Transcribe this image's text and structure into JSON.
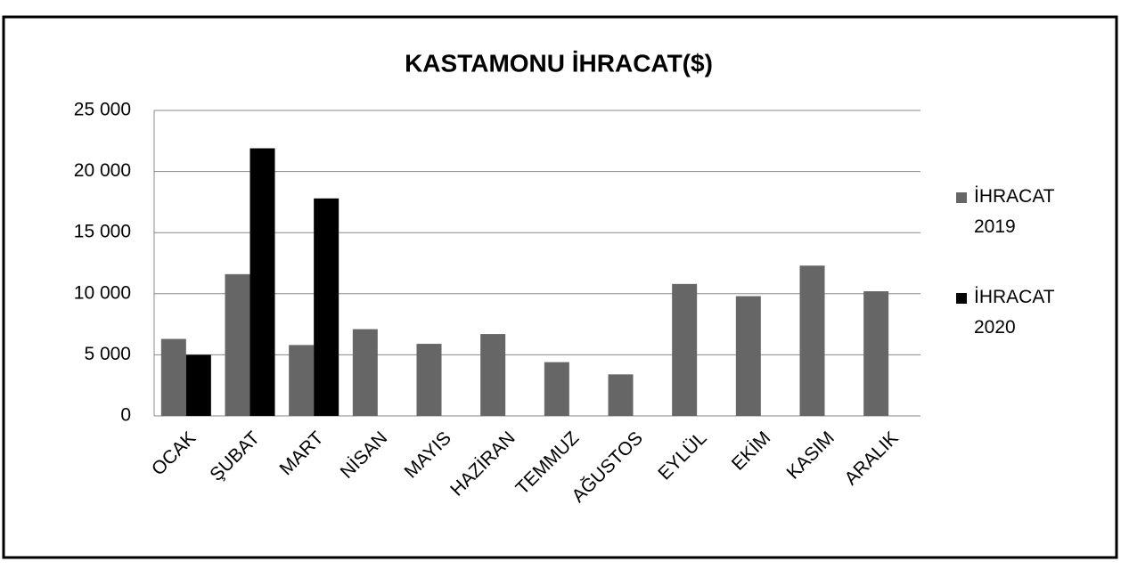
{
  "chart_data": {
    "type": "bar",
    "title": "KASTAMONU İHRACAT($)",
    "categories": [
      "OCAK",
      "ŞUBAT",
      "MART",
      "NİSAN",
      "MAYIS",
      "HAZİRAN",
      "TEMMUZ",
      "AĞUSTOS",
      "EYLÜL",
      "EKİM",
      "KASIM",
      "ARALIK"
    ],
    "series": [
      {
        "name": "İHRACAT 2019",
        "color": "#666666",
        "values": [
          6300,
          11600,
          5800,
          7100,
          5900,
          6700,
          4400,
          3400,
          10800,
          9800,
          12300,
          10200
        ]
      },
      {
        "name": "İHRACAT 2020",
        "color": "#000000",
        "values": [
          5000,
          21900,
          17800,
          null,
          null,
          null,
          null,
          null,
          null,
          null,
          null,
          null
        ]
      }
    ],
    "ylim": [
      0,
      25000
    ],
    "yticks": [
      {
        "value": 0,
        "label": "0"
      },
      {
        "value": 5000,
        "label": "5 000"
      },
      {
        "value": 10000,
        "label": "10 000"
      },
      {
        "value": 15000,
        "label": "15 000"
      },
      {
        "value": 20000,
        "label": "20 000"
      },
      {
        "value": 25000,
        "label": "25 000"
      }
    ],
    "grid": true,
    "legend": "right"
  }
}
